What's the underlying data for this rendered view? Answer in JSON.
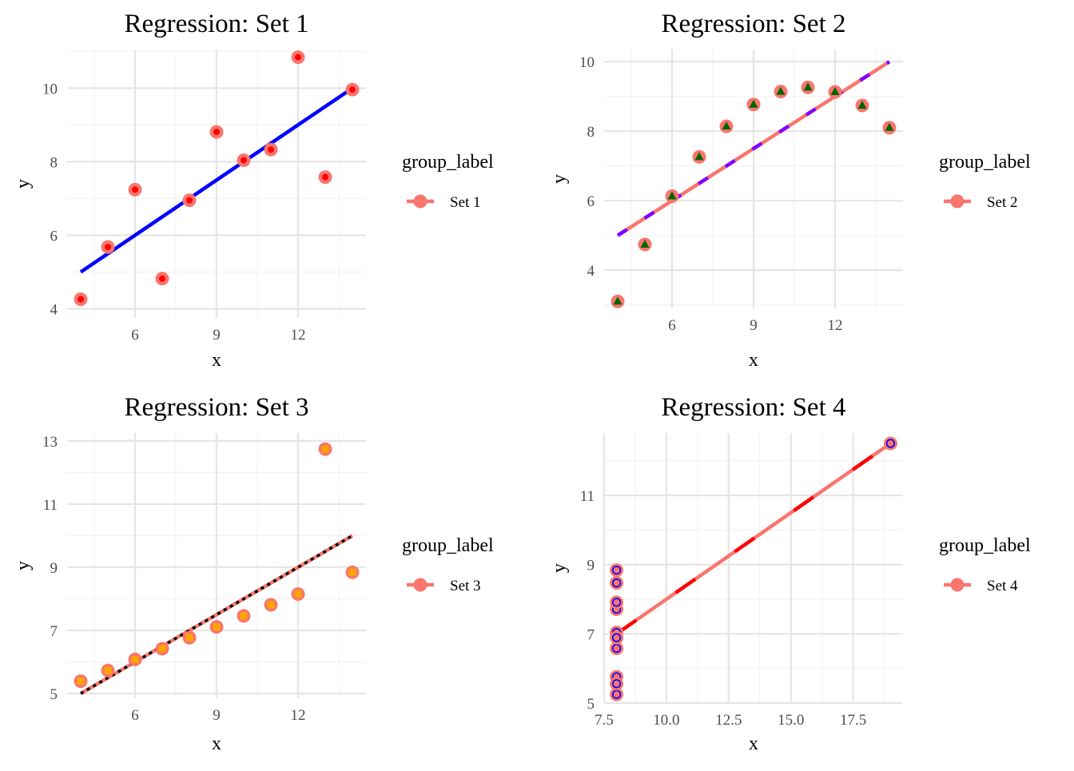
{
  "chart_data": [
    {
      "type": "scatter",
      "title": "Regression:  Set 1",
      "xlabel": "x",
      "ylabel": "y",
      "xlim": [
        3.5,
        14.5
      ],
      "ylim": [
        3.75,
        11.05
      ],
      "xticks": [
        6,
        9,
        12
      ],
      "yticks": [
        4,
        6,
        8,
        10
      ],
      "grid": true,
      "legend": {
        "title": "group_label",
        "position": "right",
        "entries": [
          "Set 1"
        ]
      },
      "series": [
        {
          "name": "Set 1",
          "x": [
            10,
            8,
            13,
            9,
            11,
            14,
            6,
            4,
            12,
            7,
            5
          ],
          "y": [
            8.04,
            6.95,
            7.58,
            8.81,
            8.33,
            9.96,
            7.24,
            4.26,
            10.84,
            4.82,
            5.68
          ]
        }
      ],
      "fit_line": {
        "x": [
          4,
          14
        ],
        "y": [
          5.0,
          10.0
        ],
        "style": "solid",
        "color": "#0000ff"
      },
      "marker": {
        "shape": "circle",
        "outer": "#f8766d",
        "inner": "#ff0000"
      }
    },
    {
      "type": "scatter",
      "title": "Regression:  Set 2",
      "xlabel": "x",
      "ylabel": "y",
      "xlim": [
        3.5,
        14.5
      ],
      "ylim": [
        2.9,
        10.35
      ],
      "xticks": [
        6,
        9,
        12
      ],
      "yticks": [
        4,
        6,
        8,
        10
      ],
      "grid": true,
      "legend": {
        "title": "group_label",
        "position": "right",
        "entries": [
          "Set 2"
        ]
      },
      "series": [
        {
          "name": "Set 2",
          "x": [
            10,
            8,
            13,
            9,
            11,
            14,
            6,
            4,
            12,
            7,
            5
          ],
          "y": [
            9.14,
            8.14,
            8.74,
            8.77,
            9.26,
            8.1,
            6.13,
            3.1,
            9.13,
            7.26,
            4.74
          ]
        }
      ],
      "fit_line": {
        "x": [
          4,
          14
        ],
        "y": [
          5.0,
          10.0
        ],
        "style": "dashed",
        "color": "#8000ff"
      },
      "marker": {
        "shape": "triangle",
        "outer": "#f8766d",
        "inner": "#006400"
      }
    },
    {
      "type": "scatter",
      "title": "Regression:  Set 3",
      "xlabel": "x",
      "ylabel": "y",
      "xlim": [
        3.5,
        14.5
      ],
      "ylim": [
        4.85,
        13.25
      ],
      "xticks": [
        6,
        9,
        12
      ],
      "yticks": [
        5,
        7,
        9,
        11,
        13
      ],
      "grid": true,
      "legend": {
        "title": "group_label",
        "position": "right",
        "entries": [
          "Set 3"
        ]
      },
      "series": [
        {
          "name": "Set 3",
          "x": [
            10,
            8,
            13,
            9,
            11,
            14,
            6,
            4,
            12,
            7,
            5
          ],
          "y": [
            7.46,
            6.77,
            12.74,
            7.11,
            7.81,
            8.84,
            6.08,
            5.39,
            8.15,
            6.42,
            5.73
          ]
        }
      ],
      "fit_line": {
        "x": [
          4,
          14
        ],
        "y": [
          5.0,
          10.0
        ],
        "style": "dotted",
        "color": "#000000"
      },
      "marker": {
        "shape": "square",
        "outer": "#f8766d",
        "inner": "#ffa500"
      }
    },
    {
      "type": "scatter",
      "title": "Regression:  Set 4",
      "xlabel": "x",
      "ylabel": "y",
      "xlim": [
        7.5,
        19.5
      ],
      "ylim": [
        5.0,
        12.8
      ],
      "xticks": [
        7.5,
        10.0,
        12.5,
        15.0,
        17.5
      ],
      "xticklabels": [
        "7.5",
        "10.0",
        "12.5",
        "15.0",
        "17.5"
      ],
      "yticks": [
        5,
        7,
        9,
        11
      ],
      "grid": true,
      "legend": {
        "title": "group_label",
        "position": "right",
        "entries": [
          "Set 4"
        ]
      },
      "series": [
        {
          "name": "Set 4",
          "x": [
            8,
            8,
            8,
            8,
            8,
            8,
            8,
            19,
            8,
            8,
            8
          ],
          "y": [
            6.58,
            5.76,
            7.71,
            8.84,
            8.47,
            7.04,
            5.25,
            12.5,
            5.56,
            7.91,
            6.89
          ]
        }
      ],
      "fit_line": {
        "x": [
          8,
          19
        ],
        "y": [
          7.0,
          12.5
        ],
        "style": "longdash",
        "color": "#ff0000"
      },
      "marker": {
        "shape": "ring",
        "outer": "#f8766d",
        "inner": "#0000ff"
      }
    }
  ],
  "colors": {
    "group": "#f8766d",
    "grid_major": "#e5e5e5",
    "grid_minor": "#f2f2f2"
  }
}
